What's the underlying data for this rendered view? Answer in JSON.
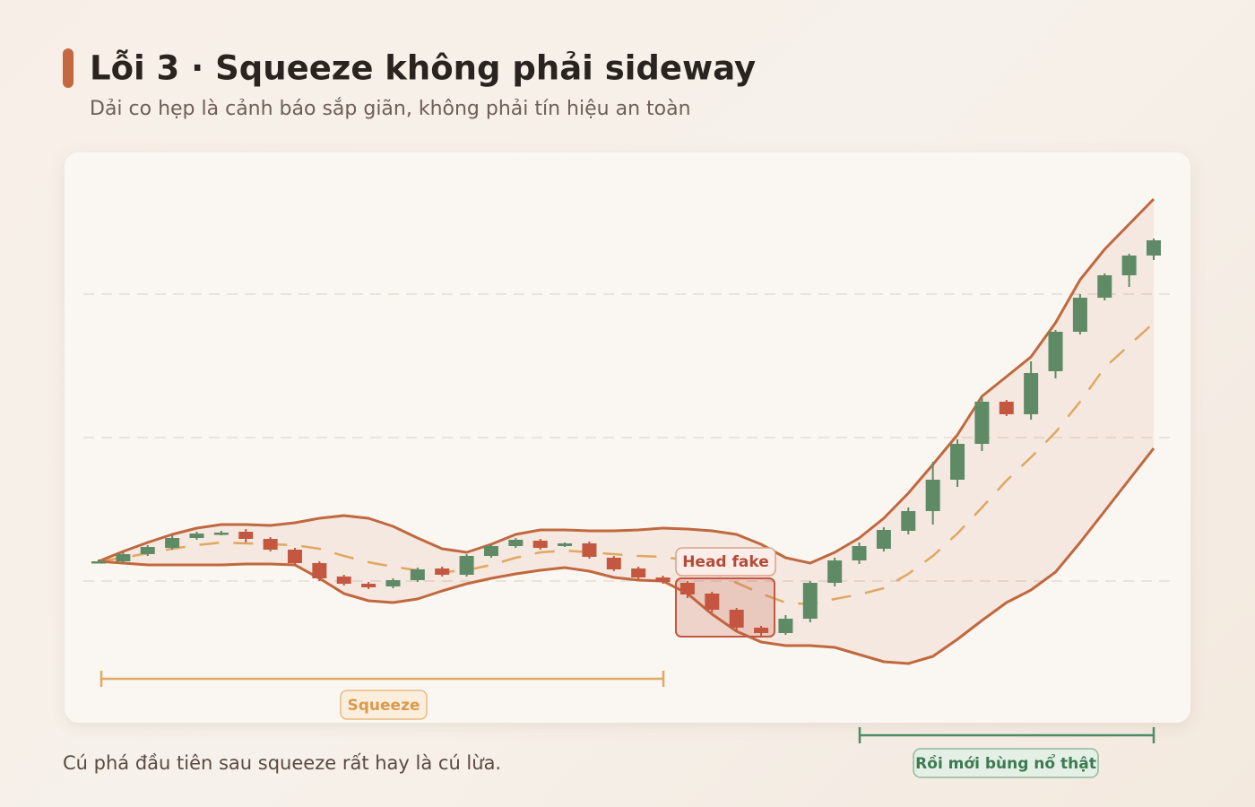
{
  "chart_data": {
    "type": "candlestick",
    "title": "Lỗi 3 · Squeeze không phải sideway",
    "subtitle": "Dải co hẹp là cảnh báo sắp giãn, không phải tín hiệu an toàn",
    "note": "Cú phá đầu tiên sau squeeze rất hay là cú lừa.",
    "annotations": {
      "squeeze": "Squeeze",
      "head_fake": "Head fake",
      "breakout": "Rồi mới bùng nổ thật"
    },
    "up_color": "#5e8b66",
    "down_color": "#c4573f",
    "band_color": "#c0683e",
    "middle_color": "#e0a860",
    "ylim": [
      0,
      640
    ],
    "grid_lines": [
      160,
      320,
      480
    ],
    "open": [
      182,
      182,
      190,
      197,
      208,
      212,
      215,
      207,
      195,
      180,
      165,
      157,
      154,
      161,
      174,
      167,
      188,
      199,
      205,
      199,
      202,
      186,
      174,
      164,
      158,
      146,
      128,
      108,
      102,
      118,
      158,
      183,
      196,
      216,
      238,
      273,
      313,
      360,
      346,
      394,
      438,
      476,
      501,
      523
    ],
    "high": [
      184,
      192,
      200,
      211,
      215,
      216,
      218,
      209,
      197,
      182,
      167,
      159,
      163,
      175,
      176,
      190,
      201,
      208,
      207,
      203,
      204,
      188,
      176,
      166,
      160,
      148,
      130,
      110,
      122,
      160,
      186,
      203,
      220,
      242,
      293,
      318,
      366,
      362,
      405,
      440,
      480,
      503,
      525,
      542
    ],
    "low": [
      180,
      180,
      188,
      195,
      206,
      211,
      203,
      193,
      178,
      160,
      155,
      151,
      152,
      159,
      165,
      165,
      186,
      197,
      195,
      198,
      185,
      171,
      162,
      157,
      141,
      125,
      104,
      99,
      100,
      114,
      154,
      179,
      193,
      212,
      223,
      265,
      305,
      344,
      340,
      386,
      435,
      473,
      488,
      518
    ],
    "close": [
      182,
      190,
      198,
      208,
      213,
      214,
      207,
      195,
      180,
      163,
      157,
      153,
      161,
      173,
      167,
      188,
      199,
      206,
      197,
      202,
      187,
      173,
      164,
      159,
      145,
      128,
      108,
      102,
      118,
      158,
      183,
      199,
      217,
      238,
      273,
      313,
      360,
      346,
      392,
      438,
      476,
      501,
      523,
      540
    ],
    "bands": {
      "upper": [
        182,
        193,
        203,
        212,
        219,
        223,
        223,
        222,
        225,
        230,
        233,
        230,
        221,
        208,
        196,
        192,
        201,
        212,
        217,
        217,
        216,
        216,
        217,
        219,
        218,
        216,
        212,
        201,
        186,
        180,
        192,
        208,
        230,
        258,
        290,
        323,
        366,
        388,
        410,
        448,
        496,
        530,
        558,
        586
      ],
      "middle": [
        182,
        186,
        191,
        196,
        200,
        203,
        202,
        201,
        200,
        196,
        188,
        181,
        176,
        172,
        170,
        172,
        178,
        186,
        192,
        194,
        192,
        190,
        188,
        187,
        183,
        170,
        158,
        146,
        136,
        134,
        140,
        145,
        152,
        168,
        188,
        213,
        242,
        272,
        298,
        326,
        360,
        398,
        423,
        448
      ],
      "lower": [
        182,
        180,
        178,
        178,
        178,
        178,
        179,
        179,
        178,
        163,
        146,
        138,
        136,
        140,
        149,
        157,
        163,
        168,
        172,
        175,
        171,
        164,
        161,
        160,
        146,
        123,
        104,
        92,
        88,
        88,
        86,
        78,
        70,
        68,
        76,
        95,
        116,
        136,
        150,
        170,
        203,
        238,
        273,
        308
      ]
    }
  }
}
